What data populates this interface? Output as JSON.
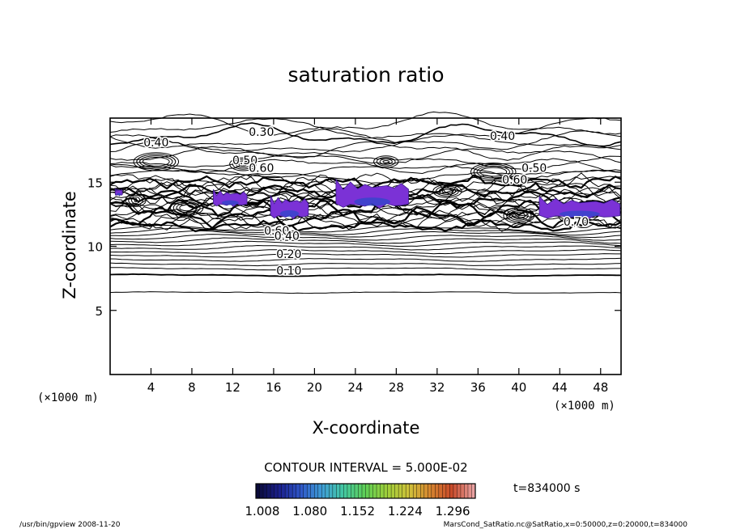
{
  "chart_data": {
    "type": "contour",
    "title": "saturation ratio",
    "xlabel": "X-coordinate",
    "ylabel": "Z-coordinate",
    "x_unit": "(×1000 m)",
    "y_unit": "(×1000 m)",
    "xlim": [
      0,
      50
    ],
    "ylim": [
      0,
      20
    ],
    "x_ticks": [
      4,
      8,
      12,
      16,
      20,
      24,
      28,
      32,
      36,
      40,
      44,
      48
    ],
    "y_ticks": [
      5,
      10,
      15
    ],
    "contour_interval_label": "CONTOUR INTERVAL = 5.000E-02",
    "contour_labels": [
      {
        "x": 14.8,
        "y": 18.6,
        "text": "0.30"
      },
      {
        "x": 4.5,
        "y": 17.8,
        "text": "0.40"
      },
      {
        "x": 38.4,
        "y": 18.3,
        "text": "0.40"
      },
      {
        "x": 13.2,
        "y": 16.4,
        "text": "0.50"
      },
      {
        "x": 14.8,
        "y": 15.8,
        "text": "0.60"
      },
      {
        "x": 41.5,
        "y": 15.8,
        "text": "0.50"
      },
      {
        "x": 39.6,
        "y": 14.9,
        "text": "0.60"
      },
      {
        "x": 16.3,
        "y": 10.9,
        "text": "0.60"
      },
      {
        "x": 17.3,
        "y": 10.5,
        "text": "0.40"
      },
      {
        "x": 17.5,
        "y": 9.1,
        "text": "0.20"
      },
      {
        "x": 17.5,
        "y": 7.8,
        "text": "0.10"
      },
      {
        "x": 45.6,
        "y": 11.6,
        "text": "0.70"
      }
    ],
    "supersaturated_regions": [
      {
        "x": [
          10.1,
          13.4
        ],
        "z": [
          13.0,
          14.6
        ]
      },
      {
        "x": [
          15.7,
          19.4
        ],
        "z": [
          12.0,
          14.2
        ]
      },
      {
        "x": [
          22.1,
          29.2
        ],
        "z": [
          12.8,
          15.5
        ]
      },
      {
        "x": [
          42.0,
          49.9
        ],
        "z": [
          12.0,
          14.1
        ]
      },
      {
        "x": [
          0.5,
          1.2
        ],
        "z": [
          13.9,
          14.6
        ]
      }
    ],
    "colorbar": {
      "tick_labels": [
        "1.008",
        "1.080",
        "1.152",
        "1.224",
        "1.296"
      ],
      "min": 1.008,
      "max": 1.34,
      "colors": [
        "#0a0a3a",
        "#1a1f8c",
        "#2f57c8",
        "#3f9fd6",
        "#44c9a0",
        "#5fcf55",
        "#9fcf3a",
        "#cfc23a",
        "#d6852f",
        "#c94a2a",
        "#e8a0a0"
      ]
    },
    "time_label": "t=834000 s"
  },
  "footer": {
    "left": "/usr/bin/gpview   2008-11-20",
    "right": "MarsCond_SatRatio.nc@SatRatio,x=0:50000,z=0:20000,t=834000"
  }
}
